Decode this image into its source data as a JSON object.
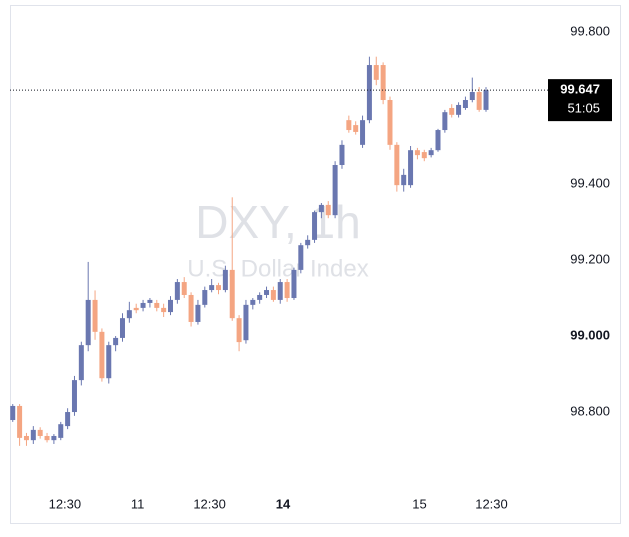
{
  "chart_data": {
    "type": "candlestick",
    "watermark": "DXY, 1h",
    "watermark_subtitle": "U.S. Dollar Index",
    "up_color": "#6a77b0",
    "down_color": "#f4a582",
    "x": [
      0,
      1,
      2,
      3,
      4,
      5,
      6,
      7,
      8,
      9,
      10,
      11,
      12,
      13,
      14,
      15,
      16,
      17,
      18,
      19,
      20,
      21,
      22,
      23,
      24,
      25,
      26,
      27,
      28,
      29,
      30,
      31,
      32,
      33,
      34,
      35,
      36,
      37,
      38,
      39,
      40,
      41,
      42,
      43,
      44,
      45,
      46,
      47,
      48,
      49,
      50,
      51,
      52,
      53,
      54,
      55,
      56,
      57,
      58,
      59,
      60,
      61,
      62,
      63,
      64,
      65,
      66,
      67,
      68,
      69
    ],
    "open": [
      98.779,
      98.816,
      98.737,
      98.726,
      98.753,
      98.737,
      98.726,
      98.732,
      98.763,
      98.8,
      98.884,
      98.976,
      99.095,
      99.011,
      98.889,
      98.976,
      98.995,
      99.047,
      99.074,
      99.074,
      99.087,
      99.087,
      99.074,
      99.063,
      99.095,
      99.142,
      99.108,
      99.037,
      99.082,
      99.121,
      99.134,
      99.121,
      99.174,
      99.047,
      98.989,
      99.082,
      99.095,
      99.108,
      99.121,
      99.095,
      99.142,
      99.1,
      99.174,
      99.239,
      99.253,
      99.326,
      99.345,
      99.318,
      99.45,
      99.568,
      99.555,
      99.503,
      99.568,
      99.713,
      99.713,
      99.621,
      99.503,
      99.397,
      99.397,
      99.489,
      99.484,
      99.476,
      99.489,
      99.542,
      99.6,
      99.582,
      99.6,
      99.621,
      99.642,
      99.595
    ],
    "high": [
      98.821,
      98.821,
      98.745,
      98.763,
      98.76,
      98.745,
      98.742,
      98.774,
      98.81,
      98.895,
      98.985,
      99.195,
      99.12,
      99.02,
      98.985,
      99.0,
      99.06,
      99.09,
      99.085,
      99.095,
      99.1,
      99.095,
      99.085,
      99.105,
      99.15,
      99.155,
      99.115,
      99.095,
      99.13,
      99.15,
      99.14,
      99.185,
      99.365,
      99.055,
      99.095,
      99.1,
      99.115,
      99.13,
      99.13,
      99.15,
      99.15,
      99.18,
      99.245,
      99.265,
      99.33,
      99.35,
      99.355,
      99.46,
      99.515,
      99.58,
      99.565,
      99.58,
      99.735,
      99.735,
      99.72,
      99.63,
      99.51,
      99.44,
      99.5,
      99.495,
      99.49,
      99.495,
      99.545,
      99.595,
      99.61,
      99.615,
      99.63,
      99.68,
      99.655,
      99.655
    ],
    "low": [
      98.774,
      98.711,
      98.711,
      98.716,
      98.73,
      98.72,
      98.716,
      98.726,
      98.755,
      98.79,
      98.87,
      98.96,
      98.99,
      98.88,
      98.875,
      98.96,
      98.985,
      99.035,
      99.06,
      99.065,
      99.075,
      99.065,
      99.05,
      99.055,
      99.085,
      99.1,
      99.025,
      99.03,
      99.075,
      99.115,
      99.11,
      99.115,
      99.04,
      98.96,
      98.98,
      99.07,
      99.085,
      99.1,
      99.09,
      99.085,
      99.09,
      99.095,
      99.165,
      99.23,
      99.245,
      99.31,
      99.31,
      99.31,
      99.44,
      99.535,
      99.53,
      99.495,
      99.56,
      99.66,
      99.61,
      99.49,
      99.38,
      99.38,
      99.39,
      99.465,
      99.46,
      99.47,
      99.485,
      99.535,
      99.575,
      99.575,
      99.595,
      99.615,
      99.59,
      99.59
    ],
    "close": [
      98.816,
      98.732,
      98.726,
      98.753,
      98.737,
      98.726,
      98.737,
      98.768,
      98.8,
      98.884,
      98.976,
      99.095,
      99.011,
      98.889,
      98.976,
      98.995,
      99.047,
      99.068,
      99.068,
      99.087,
      99.095,
      99.074,
      99.063,
      99.095,
      99.142,
      99.108,
      99.037,
      99.082,
      99.121,
      99.134,
      99.121,
      99.174,
      99.047,
      98.984,
      99.082,
      99.095,
      99.108,
      99.121,
      99.095,
      99.142,
      99.1,
      99.174,
      99.239,
      99.253,
      99.326,
      99.345,
      99.318,
      99.45,
      99.503,
      99.542,
      99.537,
      99.568,
      99.713,
      99.674,
      99.621,
      99.503,
      99.397,
      99.424,
      99.489,
      99.476,
      99.468,
      99.489,
      99.542,
      99.589,
      99.582,
      99.608,
      99.621,
      99.642,
      99.595,
      99.647
    ],
    "xlim": [
      -0.4,
      77.6
    ],
    "ylim": [
      98.608,
      99.871
    ],
    "xticks": [
      {
        "value": 7.6,
        "label": "12:30"
      },
      {
        "value": 18.2,
        "label": "11"
      },
      {
        "value": 28.7,
        "label": "12:30"
      },
      {
        "value": 39.4,
        "label": "14",
        "bold": true
      },
      {
        "value": 59.3,
        "label": "15"
      },
      {
        "value": 69.8,
        "label": "12:30"
      }
    ],
    "yticks": [
      {
        "value": 98.8,
        "label": "98.800"
      },
      {
        "value": 99.0,
        "label": "99.000",
        "bold": true
      },
      {
        "value": 99.2,
        "label": "99.200"
      },
      {
        "value": 99.4,
        "label": "99.400"
      },
      {
        "value": 99.8,
        "label": "99.800"
      }
    ],
    "last_price": {
      "value": 99.647,
      "label": "99.647"
    },
    "countdown": "51:05",
    "grid": false
  }
}
